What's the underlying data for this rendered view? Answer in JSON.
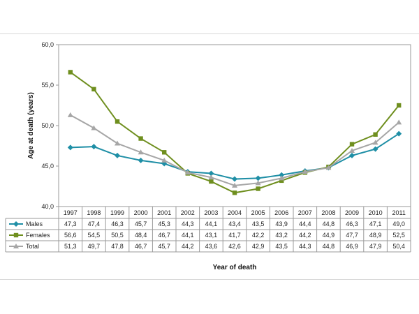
{
  "chart_data": {
    "type": "line",
    "xlabel": "Year of death",
    "ylabel": "Age at death (years)",
    "ylim": [
      40,
      60
    ],
    "yticks": [
      "40,0",
      "45,0",
      "50,0",
      "55,0",
      "60,0"
    ],
    "grid": false,
    "legend": "data-table-left",
    "categories": [
      "1997",
      "1998",
      "1999",
      "2000",
      "2001",
      "2002",
      "2003",
      "2004",
      "2005",
      "2006",
      "2007",
      "2008",
      "2009",
      "2010",
      "2011"
    ],
    "series": [
      {
        "name": "Males",
        "color": "#1f8fa6",
        "marker": "diamond",
        "values": [
          47.3,
          47.4,
          46.3,
          45.7,
          45.3,
          44.3,
          44.1,
          43.4,
          43.5,
          43.9,
          44.4,
          44.8,
          46.3,
          47.1,
          49.0
        ],
        "labels": [
          "47,3",
          "47,4",
          "46,3",
          "45,7",
          "45,3",
          "44,3",
          "44,1",
          "43,4",
          "43,5",
          "43,9",
          "44,4",
          "44,8",
          "46,3",
          "47,1",
          "49,0"
        ]
      },
      {
        "name": "Females",
        "color": "#6f8f1f",
        "marker": "square",
        "values": [
          56.6,
          54.5,
          50.5,
          48.4,
          46.7,
          44.1,
          43.1,
          41.7,
          42.2,
          43.2,
          44.2,
          44.9,
          47.7,
          48.9,
          52.5
        ],
        "labels": [
          "56,6",
          "54,5",
          "50,5",
          "48,4",
          "46,7",
          "44,1",
          "43,1",
          "41,7",
          "42,2",
          "43,2",
          "44,2",
          "44,9",
          "47,7",
          "48,9",
          "52,5"
        ]
      },
      {
        "name": "Total",
        "color": "#a6a6a6",
        "marker": "triangle",
        "values": [
          51.3,
          49.7,
          47.8,
          46.7,
          45.7,
          44.2,
          43.6,
          42.6,
          42.9,
          43.5,
          44.3,
          44.8,
          46.9,
          47.9,
          50.4
        ],
        "labels": [
          "51,3",
          "49,7",
          "47,8",
          "46,7",
          "45,7",
          "44,2",
          "43,6",
          "42,6",
          "42,9",
          "43,5",
          "44,3",
          "44,8",
          "46,9",
          "47,9",
          "50,4"
        ]
      }
    ]
  }
}
